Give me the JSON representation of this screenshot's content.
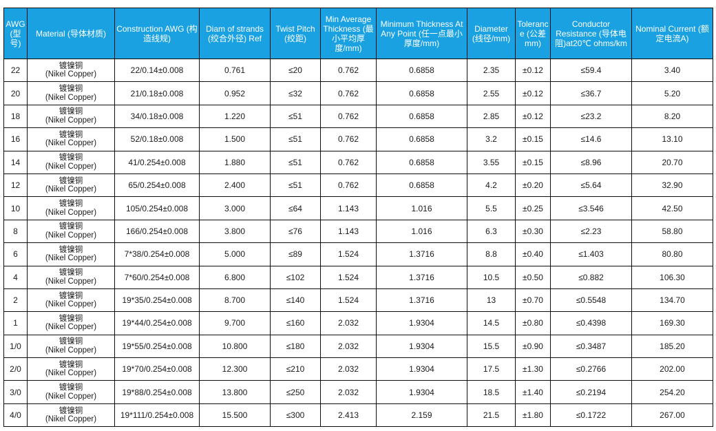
{
  "headers": [
    {
      "l1": "AWG",
      "l2": "(型号)"
    },
    {
      "l1": "Material",
      "l2": "(导体材质)"
    },
    {
      "l1": "Construction AWG",
      "l2": "(构造线规)"
    },
    {
      "l1": "Diam of strands",
      "l2": "(绞合外径) Ref"
    },
    {
      "l1": "Twist Pitch",
      "l2": "(绞距)"
    },
    {
      "l1": "Min Average Thickness",
      "l2": "(最小平均厚度/mm)"
    },
    {
      "l1": "Minimum Thickness At Any Point",
      "l2": "(任一点最小厚度/mm)"
    },
    {
      "l1": "Diameter",
      "l2": "(线径/mm)"
    },
    {
      "l1": "Tolerance",
      "l2": "(公差mm)"
    },
    {
      "l1": "Conductor Resistance",
      "l2": "(导体电阻)at20℃ ohms/km"
    },
    {
      "l1": "Nominal Current",
      "l2": "(额定电流A)"
    }
  ],
  "rows": [
    {
      "awg": "22",
      "material_cn": "镀镍铜",
      "material_en": "(Nikel Copper)",
      "construction": "22/0.14±0.008",
      "strand_diam": "0.761",
      "twist_pitch": "≤20",
      "min_avg_thickness": "0.762",
      "min_thickness": "0.6858",
      "diameter": "2.35",
      "tolerance": "±0.12",
      "resistance": "≤59.4",
      "current": "3.40"
    },
    {
      "awg": "20",
      "material_cn": "镀镍铜",
      "material_en": "(Nikel Copper)",
      "construction": "21/0.18±0.008",
      "strand_diam": "0.952",
      "twist_pitch": "≤32",
      "min_avg_thickness": "0.762",
      "min_thickness": "0.6858",
      "diameter": "2.55",
      "tolerance": "±0.12",
      "resistance": "≤36.7",
      "current": "5.20"
    },
    {
      "awg": "18",
      "material_cn": "镀镍铜",
      "material_en": "(Nikel Copper)",
      "construction": "34/0.18±0.008",
      "strand_diam": "1.220",
      "twist_pitch": "≤51",
      "min_avg_thickness": "0.762",
      "min_thickness": "0.6858",
      "diameter": "2.85",
      "tolerance": "±0.12",
      "resistance": "≤23.2",
      "current": "8.20"
    },
    {
      "awg": "16",
      "material_cn": "镀镍铜",
      "material_en": "(Nikel Copper)",
      "construction": "52/0.18±0.008",
      "strand_diam": "1.500",
      "twist_pitch": "≤51",
      "min_avg_thickness": "0.762",
      "min_thickness": "0.6858",
      "diameter": "3.2",
      "tolerance": "±0.15",
      "resistance": "≤14.6",
      "current": "13.10"
    },
    {
      "awg": "14",
      "material_cn": "镀镍铜",
      "material_en": "(Nikel Copper)",
      "construction": "41/0.254±0.008",
      "strand_diam": "1.880",
      "twist_pitch": "≤51",
      "min_avg_thickness": "0.762",
      "min_thickness": "0.6858",
      "diameter": "3.55",
      "tolerance": "±0.15",
      "resistance": "≤8.96",
      "current": "20.70"
    },
    {
      "awg": "12",
      "material_cn": "镀镍铜",
      "material_en": "(Nikel Copper)",
      "construction": "65/0.254±0.008",
      "strand_diam": "2.400",
      "twist_pitch": "≤51",
      "min_avg_thickness": "0.762",
      "min_thickness": "0.6858",
      "diameter": "4.2",
      "tolerance": "±0.20",
      "resistance": "≤5.64",
      "current": "32.90"
    },
    {
      "awg": "10",
      "material_cn": "镀镍铜",
      "material_en": "(Nikel Copper)",
      "construction": "105/0.254±0.008",
      "strand_diam": "3.000",
      "twist_pitch": "≤64",
      "min_avg_thickness": "1.143",
      "min_thickness": "1.016",
      "diameter": "5.5",
      "tolerance": "±0.25",
      "resistance": "≤3.546",
      "current": "42.50"
    },
    {
      "awg": "8",
      "material_cn": "镀镍铜",
      "material_en": "(Nikel Copper)",
      "construction": "166/0.254±0.008",
      "strand_diam": "3.800",
      "twist_pitch": "≤76",
      "min_avg_thickness": "1.143",
      "min_thickness": "1.016",
      "diameter": "6.3",
      "tolerance": "±0.30",
      "resistance": "≤2.23",
      "current": "58.80"
    },
    {
      "awg": "6",
      "material_cn": "镀镍铜",
      "material_en": "(Nikel Copper)",
      "construction": "7*38/0.254±0.008",
      "strand_diam": "5.000",
      "twist_pitch": "≤89",
      "min_avg_thickness": "1.524",
      "min_thickness": "1.3716",
      "diameter": "8.8",
      "tolerance": "±0.40",
      "resistance": "≤1.403",
      "current": "80.80"
    },
    {
      "awg": "4",
      "material_cn": "镀镍铜",
      "material_en": "(Nikel Copper)",
      "construction": "7*60/0.254±0.008",
      "strand_diam": "6.800",
      "twist_pitch": "≤102",
      "min_avg_thickness": "1.524",
      "min_thickness": "1.3716",
      "diameter": "10.5",
      "tolerance": "±0.50",
      "resistance": "≤0.882",
      "current": "106.30"
    },
    {
      "awg": "2",
      "material_cn": "镀镍铜",
      "material_en": "(Nikel Copper)",
      "construction": "19*35/0.254±0.008",
      "strand_diam": "8.700",
      "twist_pitch": "≤140",
      "min_avg_thickness": "1.524",
      "min_thickness": "1.3716",
      "diameter": "13",
      "tolerance": "±0.70",
      "resistance": "≤0.5548",
      "current": "134.70"
    },
    {
      "awg": "1",
      "material_cn": "镀镍铜",
      "material_en": "(Nikel Copper)",
      "construction": "19*44/0.254±0.008",
      "strand_diam": "9.700",
      "twist_pitch": "≤160",
      "min_avg_thickness": "2.032",
      "min_thickness": "1.9304",
      "diameter": "14.5",
      "tolerance": "±0.80",
      "resistance": "≤0.4398",
      "current": "169.30"
    },
    {
      "awg": "1/0",
      "material_cn": "镀镍铜",
      "material_en": "(Nikel Copper)",
      "construction": "19*55/0.254±0.008",
      "strand_diam": "10.800",
      "twist_pitch": "≤180",
      "min_avg_thickness": "2.032",
      "min_thickness": "1.9304",
      "diameter": "15.5",
      "tolerance": "±0.90",
      "resistance": "≤0.3487",
      "current": "185.20"
    },
    {
      "awg": "2/0",
      "material_cn": "镀镍铜",
      "material_en": "(Nikel Copper)",
      "construction": "19*70/0.254±0.008",
      "strand_diam": "12.300",
      "twist_pitch": "≤210",
      "min_avg_thickness": "2.032",
      "min_thickness": "1.9304",
      "diameter": "17.5",
      "tolerance": "±1.30",
      "resistance": "≤0.2766",
      "current": "202.00"
    },
    {
      "awg": "3/0",
      "material_cn": "镀镍铜",
      "material_en": "(Nikel Copper)",
      "construction": "19*88/0.254±0.008",
      "strand_diam": "13.800",
      "twist_pitch": "≤250",
      "min_avg_thickness": "2.032",
      "min_thickness": "1.9304",
      "diameter": "18.5",
      "tolerance": "±1.40",
      "resistance": "≤0.2194",
      "current": "254.20"
    },
    {
      "awg": "4/0",
      "material_cn": "镀镍铜",
      "material_en": "(Nikel Copper)",
      "construction": "19*111/0.254±0.008",
      "strand_diam": "15.500",
      "twist_pitch": "≤300",
      "min_avg_thickness": "2.413",
      "min_thickness": "2.159",
      "diameter": "21.5",
      "tolerance": "±1.80",
      "resistance": "≤0.1722",
      "current": "267.00"
    }
  ],
  "colors": {
    "header_bg": "#1aa1e2",
    "header_text": "#ffffff",
    "border": "#0d0d0d",
    "body_text": "#1a1a1a"
  }
}
